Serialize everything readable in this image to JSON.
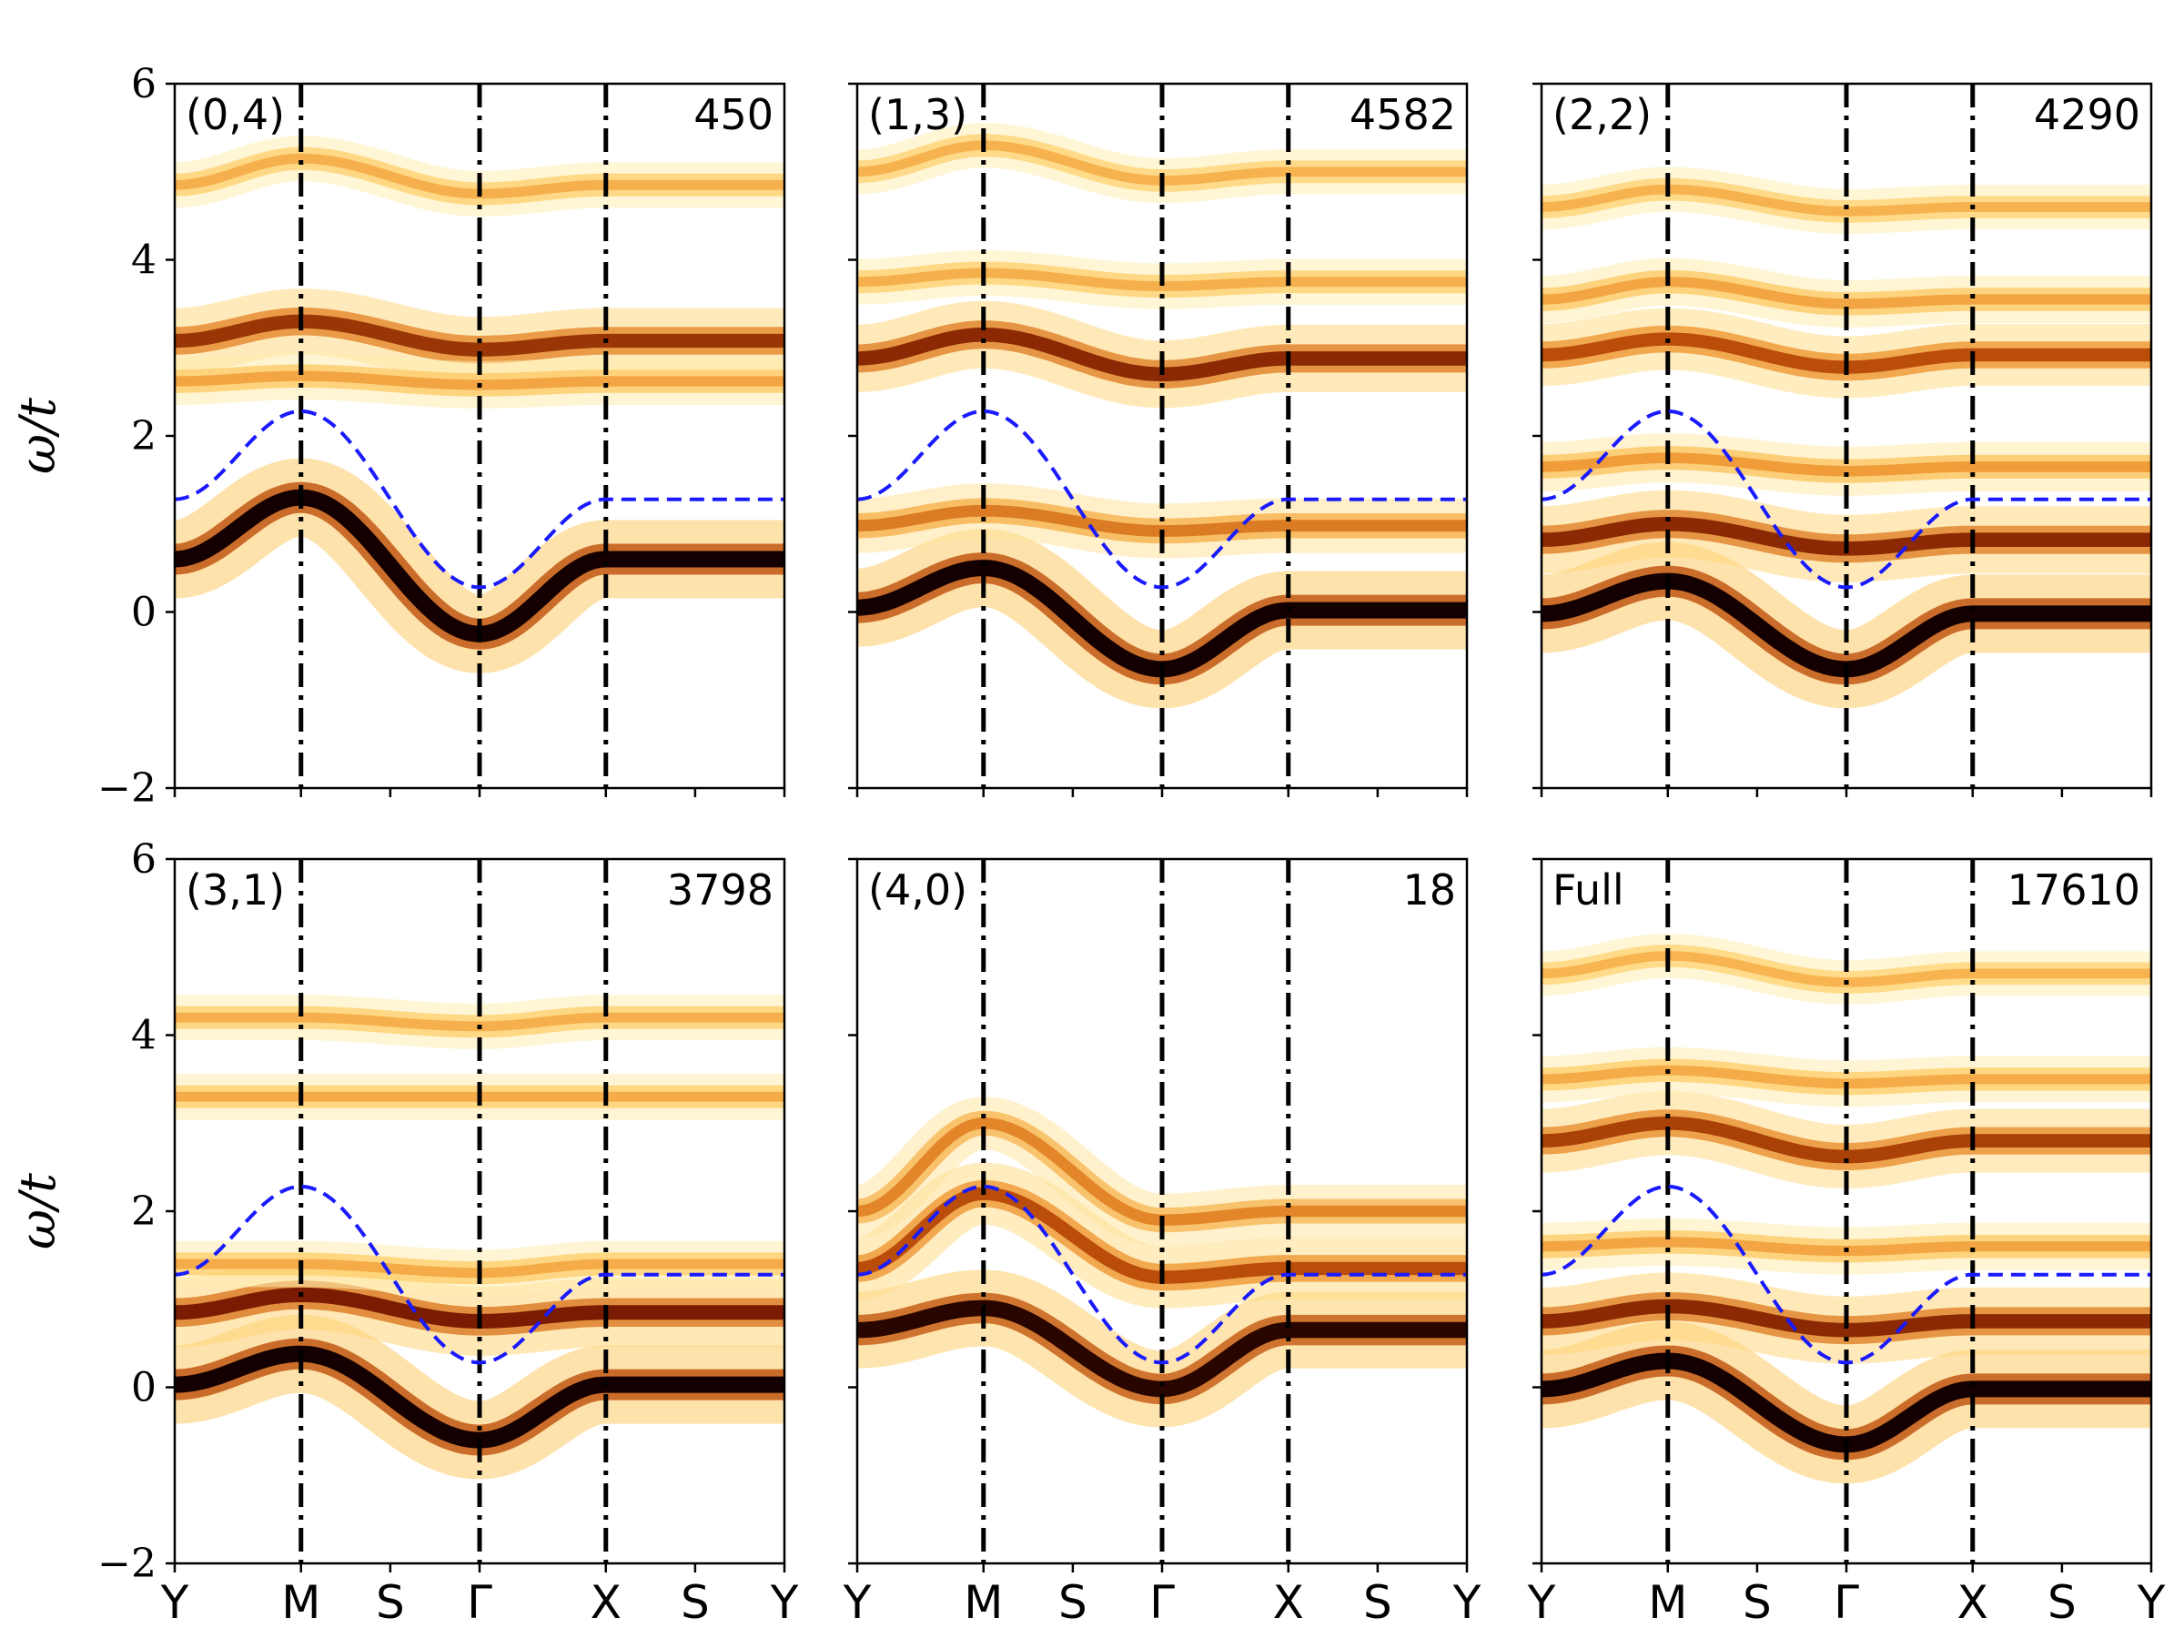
{
  "chart_data": {
    "type": "heatmap",
    "ylabel": "ω/t",
    "ylim": [
      -2,
      6
    ],
    "yticks": [
      "−2",
      "0",
      "2",
      "4",
      "6"
    ],
    "yticks_values": [
      -2,
      0,
      2,
      4,
      6
    ],
    "x_path_labels": [
      "Y",
      "M",
      "S",
      "Γ",
      "X",
      "S",
      "Y"
    ],
    "x_path_positions": [
      0,
      1,
      1.7071,
      2.4142,
      3.4142,
      4.1213,
      4.8284
    ],
    "vertical_lines_at": [
      "M",
      "Γ",
      "X"
    ],
    "colormap": "afmhot_r",
    "dashed_curve": {
      "color": "#1a1aff",
      "values_at_labels": {
        "Y": 1.28,
        "M": 2.28,
        "Γ": 0.28,
        "X": 1.28
      },
      "shape": "Y→M rises 1.28→2.28, M→Γ falls 2.28→0.28, Γ→X rises 0.28→1.28, X→Y flat 1.28"
    },
    "panels": [
      {
        "label": "(0,4)",
        "count": "450",
        "bands": [
          {
            "Y": 0.6,
            "M": 1.3,
            "G": -0.25,
            "X": 0.6,
            "strength": 1.0
          },
          {
            "Y": 3.08,
            "M": 3.3,
            "G": 2.98,
            "X": 3.08,
            "strength": 0.65
          },
          {
            "Y": 2.62,
            "M": 2.68,
            "G": 2.58,
            "X": 2.62,
            "strength": 0.15
          },
          {
            "Y": 4.85,
            "M": 5.15,
            "G": 4.75,
            "X": 4.85,
            "strength": 0.1
          }
        ]
      },
      {
        "label": "(1,3)",
        "count": "4582",
        "bands": [
          {
            "Y": 0.05,
            "M": 0.5,
            "G": -0.65,
            "X": 0.02,
            "strength": 1.0
          },
          {
            "Y": 0.98,
            "M": 1.15,
            "G": 0.92,
            "X": 0.98,
            "strength": 0.35
          },
          {
            "Y": 2.88,
            "M": 3.15,
            "G": 2.7,
            "X": 2.88,
            "strength": 0.7
          },
          {
            "Y": 3.75,
            "M": 3.85,
            "G": 3.7,
            "X": 3.75,
            "strength": 0.1
          },
          {
            "Y": 5.0,
            "M": 5.3,
            "G": 4.9,
            "X": 5.0,
            "strength": 0.08
          }
        ]
      },
      {
        "label": "(2,2)",
        "count": "4290",
        "bands": [
          {
            "Y": -0.02,
            "M": 0.35,
            "G": -0.65,
            "X": -0.02,
            "strength": 1.0
          },
          {
            "Y": 0.82,
            "M": 1.0,
            "G": 0.72,
            "X": 0.82,
            "strength": 0.7
          },
          {
            "Y": 1.65,
            "M": 1.75,
            "G": 1.6,
            "X": 1.65,
            "strength": 0.2
          },
          {
            "Y": 2.92,
            "M": 3.1,
            "G": 2.78,
            "X": 2.92,
            "strength": 0.55
          },
          {
            "Y": 3.55,
            "M": 3.75,
            "G": 3.5,
            "X": 3.55,
            "strength": 0.15
          },
          {
            "Y": 4.6,
            "M": 4.8,
            "G": 4.55,
            "X": 4.6,
            "strength": 0.08
          }
        ]
      },
      {
        "label": "(3,1)",
        "count": "3798",
        "bands": [
          {
            "Y": 0.03,
            "M": 0.38,
            "G": -0.6,
            "X": 0.03,
            "strength": 1.0
          },
          {
            "Y": 0.85,
            "M": 1.05,
            "G": 0.75,
            "X": 0.85,
            "strength": 0.75
          },
          {
            "Y": 1.4,
            "M": 1.4,
            "G": 1.3,
            "X": 1.4,
            "strength": 0.12
          },
          {
            "Y": 3.3,
            "M": 3.3,
            "G": 3.3,
            "X": 3.3,
            "strength": 0.12
          },
          {
            "Y": 4.2,
            "M": 4.2,
            "G": 4.1,
            "X": 4.2,
            "strength": 0.1
          }
        ]
      },
      {
        "label": "(4,0)",
        "count": "18",
        "bands": [
          {
            "Y": 0.65,
            "M": 0.9,
            "G": -0.02,
            "X": 0.65,
            "strength": 0.95
          },
          {
            "Y": 1.35,
            "M": 2.2,
            "G": 1.25,
            "X": 1.35,
            "strength": 0.55
          },
          {
            "Y": 2.0,
            "M": 3.0,
            "G": 1.9,
            "X": 2.0,
            "strength": 0.3
          }
        ]
      },
      {
        "label": "Full",
        "count": "17610",
        "bands": [
          {
            "Y": -0.02,
            "M": 0.3,
            "G": -0.65,
            "X": -0.02,
            "strength": 1.0
          },
          {
            "Y": 0.75,
            "M": 0.92,
            "G": 0.65,
            "X": 0.75,
            "strength": 0.7
          },
          {
            "Y": 1.6,
            "M": 1.65,
            "G": 1.55,
            "X": 1.6,
            "strength": 0.15
          },
          {
            "Y": 2.8,
            "M": 3.0,
            "G": 2.62,
            "X": 2.8,
            "strength": 0.6
          },
          {
            "Y": 3.5,
            "M": 3.6,
            "G": 3.45,
            "X": 3.5,
            "strength": 0.12
          },
          {
            "Y": 4.7,
            "M": 4.9,
            "G": 4.6,
            "X": 4.7,
            "strength": 0.07
          }
        ]
      }
    ]
  }
}
